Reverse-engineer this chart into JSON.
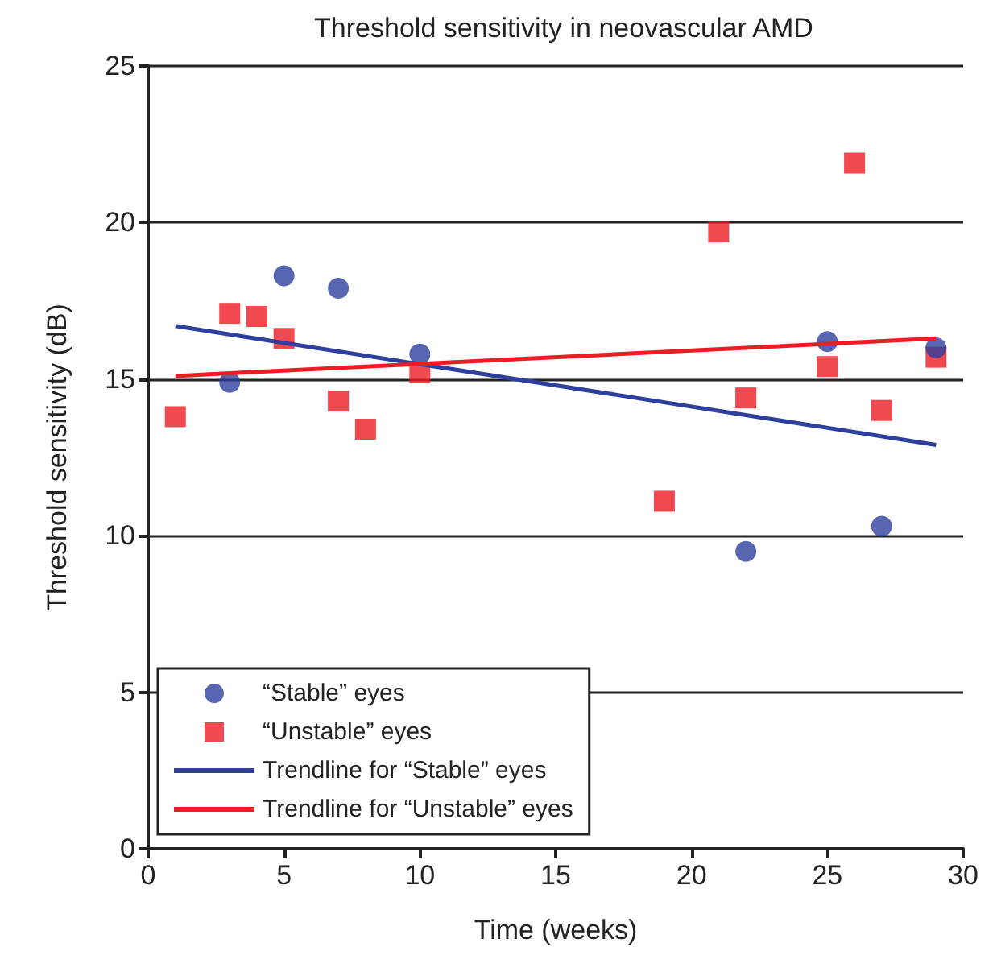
{
  "chart_data": {
    "type": "scatter",
    "title": "Threshold sensitivity in neovascular AMD",
    "xlabel": "Time (weeks)",
    "ylabel": "Threshold sensitivity (dB)",
    "series": [
      {
        "name": "“Stable” eyes",
        "color": "#2e3f9e",
        "marker": "circle",
        "x": [
          3,
          5,
          7,
          10,
          22,
          25,
          27,
          29
        ],
        "values": [
          14.9,
          18.3,
          17.9,
          15.8,
          9.5,
          16.2,
          10.3,
          16.0
        ]
      },
      {
        "name": "“Unstable” eyes",
        "color": "#ee1c24",
        "marker": "square",
        "x": [
          1,
          3,
          4,
          5,
          7,
          8,
          10,
          19,
          21,
          22,
          25,
          26,
          27,
          29
        ],
        "values": [
          13.8,
          17.1,
          17.0,
          16.3,
          14.3,
          13.4,
          15.2,
          11.1,
          19.7,
          14.4,
          15.4,
          21.9,
          14.0,
          15.7
        ]
      },
      {
        "name": "Trendline for “Stable” eyes",
        "type": "line",
        "marker": "none",
        "color": "#2e3f9e",
        "x": [
          1,
          29
        ],
        "values": [
          16.7,
          12.9
        ]
      },
      {
        "name": "Trendline for “Unstable” eyes",
        "type": "line",
        "marker": "none",
        "color": "#ee1c24",
        "x": [
          1,
          29
        ],
        "values": [
          15.1,
          16.3
        ]
      }
    ],
    "xlim": [
      0,
      30
    ],
    "xticks": [
      0,
      5,
      10,
      15,
      20,
      25,
      30
    ],
    "ylim": [
      0,
      25
    ],
    "yticks": [
      0,
      5,
      10,
      15,
      20,
      25
    ],
    "grid": "y",
    "legend": "bottom left"
  }
}
